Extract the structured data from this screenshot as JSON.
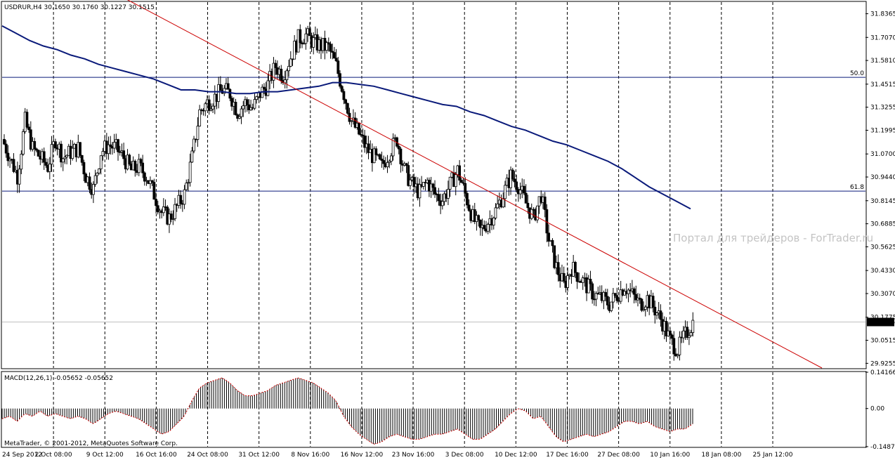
{
  "chart_data": {
    "type": "candlestick",
    "symbol": "USDRUR,H4",
    "ohlc": {
      "open": "30.1650",
      "high": "30.1760",
      "low": "30.1227",
      "close": "30.1515"
    },
    "current_price": "30.1515",
    "watermark": "Портал для трейдеров - ForTrader.ru",
    "footer": "MetaTrader, © 2001-2012, MetaQuotes Software Corp.",
    "price_axis": {
      "min": 29.9,
      "max": 31.9,
      "ticks": [
        "31.8365",
        "31.7070",
        "31.5810",
        "31.4515",
        "31.3255",
        "31.1995",
        "31.0700",
        "30.9440",
        "30.8145",
        "30.6885",
        "30.5625",
        "30.4330",
        "30.3070",
        "30.1775",
        "30.0515",
        "29.9255"
      ]
    },
    "time_axis": [
      "24 Sep 2012",
      "2 Oct 08:00",
      "9 Oct 12:00",
      "16 Oct 16:00",
      "24 Oct 08:00",
      "31 Oct 12:00",
      "8 Nov 16:00",
      "16 Nov 12:00",
      "23 Nov 16:00",
      "3 Dec 08:00",
      "10 Dec 12:00",
      "17 Dec 16:00",
      "27 Dec 08:00",
      "10 Jan 16:00",
      "18 Jan 08:00",
      "25 Jan 12:00"
    ],
    "fibonacci_levels": [
      {
        "label": "50.0",
        "price": 31.489
      },
      {
        "label": "61.8",
        "price": 30.867
      }
    ],
    "trendline": {
      "start_price": 31.94,
      "end_price": 29.9,
      "color": "#cc0000"
    },
    "moving_average": {
      "color": "#0a1a7a",
      "values": [
        31.77,
        31.73,
        31.69,
        31.66,
        31.64,
        31.61,
        31.59,
        31.56,
        31.54,
        31.52,
        31.5,
        31.48,
        31.45,
        31.42,
        31.42,
        31.41,
        31.41,
        31.4,
        31.4,
        31.41,
        31.41,
        31.42,
        31.43,
        31.44,
        31.46,
        31.46,
        31.45,
        31.44,
        31.42,
        31.4,
        31.38,
        31.36,
        31.34,
        31.33,
        31.3,
        31.28,
        31.25,
        31.22,
        31.2,
        31.17,
        31.14,
        31.12,
        31.09,
        31.06,
        31.03,
        30.99,
        30.94,
        30.89,
        30.85,
        30.81,
        30.77
      ]
    },
    "price_series": [
      31.15,
      31.05,
      30.95,
      31.25,
      31.1,
      31.05,
      31.0,
      31.15,
      31.05,
      31.08,
      31.1,
      30.95,
      30.88,
      31.08,
      31.12,
      31.1,
      31.05,
      30.98,
      31.0,
      30.95,
      30.85,
      30.75,
      30.72,
      30.78,
      30.85,
      31.05,
      31.3,
      31.35,
      31.38,
      31.42,
      31.4,
      31.3,
      31.35,
      31.32,
      31.4,
      31.45,
      31.55,
      31.5,
      31.6,
      31.7,
      31.72,
      31.68,
      31.66,
      31.65,
      31.55,
      31.4,
      31.25,
      31.18,
      31.1,
      31.05,
      31.0,
      31.08,
      31.15,
      30.98,
      30.9,
      30.86,
      30.92,
      30.85,
      30.82,
      30.9,
      30.98,
      30.85,
      30.72,
      30.65,
      30.7,
      30.76,
      30.85,
      30.95,
      30.9,
      30.8,
      30.72,
      30.85,
      30.6,
      30.45,
      30.35,
      30.45,
      30.4,
      30.35,
      30.3,
      30.28,
      30.25,
      30.3,
      30.35,
      30.3,
      30.25,
      30.28,
      30.22,
      30.15,
      30.05,
      30.0,
      30.08,
      30.15
    ],
    "macd": {
      "label": "MACD(12,26,1) -0.05652 -0.05652",
      "axis_ticks": [
        "0.14166",
        "0.00",
        "-0.14875"
      ],
      "range": [
        -0.1488,
        0.1417
      ],
      "values": [
        -0.04,
        -0.03,
        -0.05,
        -0.02,
        -0.03,
        -0.01,
        -0.03,
        -0.02,
        -0.03,
        -0.04,
        -0.03,
        -0.04,
        -0.06,
        -0.04,
        -0.02,
        -0.01,
        -0.02,
        -0.03,
        -0.04,
        -0.06,
        -0.08,
        -0.1,
        -0.09,
        -0.06,
        -0.03,
        0.03,
        0.08,
        0.1,
        0.11,
        0.12,
        0.1,
        0.07,
        0.05,
        0.05,
        0.06,
        0.07,
        0.09,
        0.1,
        0.11,
        0.12,
        0.11,
        0.1,
        0.08,
        0.06,
        0.03,
        -0.03,
        -0.07,
        -0.1,
        -0.12,
        -0.14,
        -0.13,
        -0.11,
        -0.1,
        -0.11,
        -0.12,
        -0.12,
        -0.11,
        -0.1,
        -0.1,
        -0.09,
        -0.08,
        -0.1,
        -0.12,
        -0.12,
        -0.1,
        -0.08,
        -0.05,
        -0.02,
        0.0,
        -0.01,
        -0.04,
        -0.03,
        -0.07,
        -0.11,
        -0.13,
        -0.12,
        -0.11,
        -0.1,
        -0.11,
        -0.1,
        -0.09,
        -0.07,
        -0.05,
        -0.05,
        -0.06,
        -0.05,
        -0.07,
        -0.08,
        -0.09,
        -0.08,
        -0.08,
        -0.06
      ]
    },
    "colors": {
      "grid_vertical": "#000000",
      "fib_line": "#0a1a7a",
      "trendline": "#cc0000",
      "macd_bar": "#000000",
      "macd_signal": "#cc0000",
      "price_label_bg": "#000000",
      "price_label_text": "#ffffff",
      "current_line": "#c0c0c0"
    }
  }
}
